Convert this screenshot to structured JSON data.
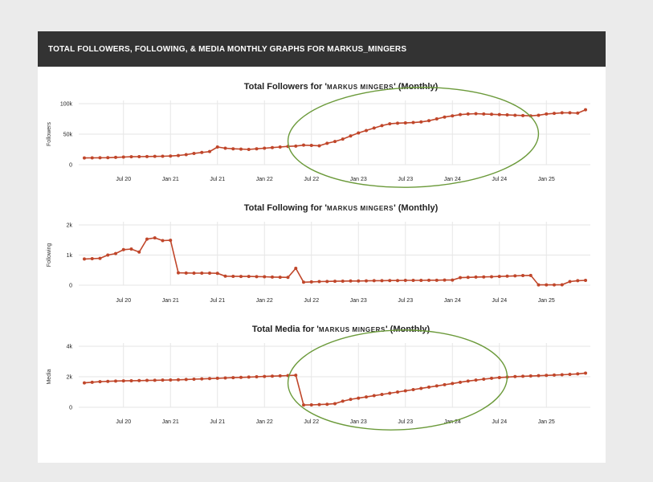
{
  "header": {
    "title": "TOTAL FOLLOWERS, FOLLOWING, & MEDIA MONTHLY GRAPHS FOR MARKUS_MINGERS"
  },
  "colors": {
    "line": "#c0462a",
    "grid": "#e6e6e6",
    "annotation": "#6b9a3a",
    "header_bg": "#333333"
  },
  "chart_data": [
    {
      "type": "line",
      "title_prefix": "Total Followers for '",
      "title_name": "MARKUS MINGERS",
      "title_suffix": "' (Monthly)",
      "ylabel": "Followers",
      "yticks": [
        {
          "value": 0,
          "label": "0"
        },
        {
          "value": 50000,
          "label": "50k"
        },
        {
          "value": 100000,
          "label": "100k"
        }
      ],
      "ylim": [
        0,
        100000
      ],
      "x_start": "2020-02",
      "xticks": [
        "Jul 20",
        "Jan 21",
        "Jul 21",
        "Jan 22",
        "Jul 22",
        "Jan 23",
        "Jul 23",
        "Jan 24",
        "Jul 24",
        "Jan 25"
      ],
      "values": [
        11000,
        11200,
        11300,
        11500,
        12000,
        12500,
        13000,
        13200,
        13400,
        13600,
        13800,
        14200,
        15000,
        16500,
        18500,
        20000,
        21500,
        29000,
        27000,
        26000,
        25500,
        25000,
        26000,
        27000,
        28000,
        29000,
        30000,
        30500,
        32000,
        31500,
        31000,
        35000,
        38000,
        42000,
        47000,
        52000,
        56000,
        60000,
        64000,
        67000,
        68000,
        68500,
        69000,
        70000,
        72000,
        75000,
        78000,
        80000,
        82000,
        83000,
        83500,
        83000,
        82500,
        82000,
        81500,
        81000,
        80500,
        80000,
        81000,
        83000,
        84000,
        85000,
        85000,
        84500,
        90000
      ],
      "grid": true,
      "annotations": [
        {
          "type": "ellipse",
          "x_from": "2022-04",
          "x_to": "2024-12"
        }
      ]
    },
    {
      "type": "line",
      "title_prefix": "Total Following for '",
      "title_name": "MARKUS MINGERS",
      "title_suffix": "' (Monthly)",
      "ylabel": "Following",
      "yticks": [
        {
          "value": 0,
          "label": "0"
        },
        {
          "value": 1000,
          "label": "1k"
        },
        {
          "value": 2000,
          "label": "2k"
        }
      ],
      "ylim": [
        0,
        2000
      ],
      "x_start": "2020-02",
      "xticks": [
        "Jul 20",
        "Jan 21",
        "Jul 21",
        "Jan 22",
        "Jul 22",
        "Jan 23",
        "Jul 23",
        "Jan 24",
        "Jul 24",
        "Jan 25"
      ],
      "values": [
        870,
        880,
        890,
        1000,
        1050,
        1180,
        1200,
        1100,
        1530,
        1570,
        1480,
        1490,
        410,
        405,
        400,
        400,
        400,
        395,
        300,
        295,
        290,
        290,
        285,
        280,
        270,
        265,
        260,
        560,
        100,
        110,
        120,
        125,
        130,
        135,
        140,
        140,
        145,
        150,
        150,
        155,
        155,
        160,
        160,
        160,
        165,
        165,
        170,
        170,
        250,
        260,
        270,
        275,
        280,
        290,
        300,
        310,
        320,
        325,
        10,
        10,
        10,
        15,
        120,
        150,
        160
      ],
      "grid": true
    },
    {
      "type": "line",
      "title_prefix": "Total Media for '",
      "title_name": "MARKUS MINGERS",
      "title_suffix": "' (Monthly)",
      "ylabel": "Media",
      "yticks": [
        {
          "value": 0,
          "label": "0"
        },
        {
          "value": 2000,
          "label": "2k"
        },
        {
          "value": 4000,
          "label": "4k"
        }
      ],
      "ylim": [
        0,
        4000
      ],
      "x_start": "2020-02",
      "xticks": [
        "Jul 20",
        "Jan 21",
        "Jul 21",
        "Jan 22",
        "Jul 22",
        "Jan 23",
        "Jul 23",
        "Jan 24",
        "Jul 24",
        "Jan 25"
      ],
      "values": [
        1600,
        1640,
        1680,
        1700,
        1720,
        1730,
        1740,
        1750,
        1760,
        1770,
        1780,
        1790,
        1800,
        1820,
        1840,
        1860,
        1880,
        1900,
        1920,
        1940,
        1960,
        1980,
        2000,
        2020,
        2040,
        2060,
        2080,
        2100,
        150,
        160,
        180,
        200,
        240,
        400,
        520,
        600,
        680,
        760,
        840,
        920,
        1000,
        1080,
        1160,
        1240,
        1320,
        1400,
        1480,
        1560,
        1640,
        1720,
        1780,
        1840,
        1900,
        1950,
        1980,
        2010,
        2030,
        2050,
        2070,
        2090,
        2110,
        2130,
        2160,
        2190,
        2240
      ],
      "grid": true,
      "annotations": [
        {
          "type": "ellipse",
          "x_from": "2022-04",
          "x_to": "2024-08"
        }
      ]
    }
  ]
}
